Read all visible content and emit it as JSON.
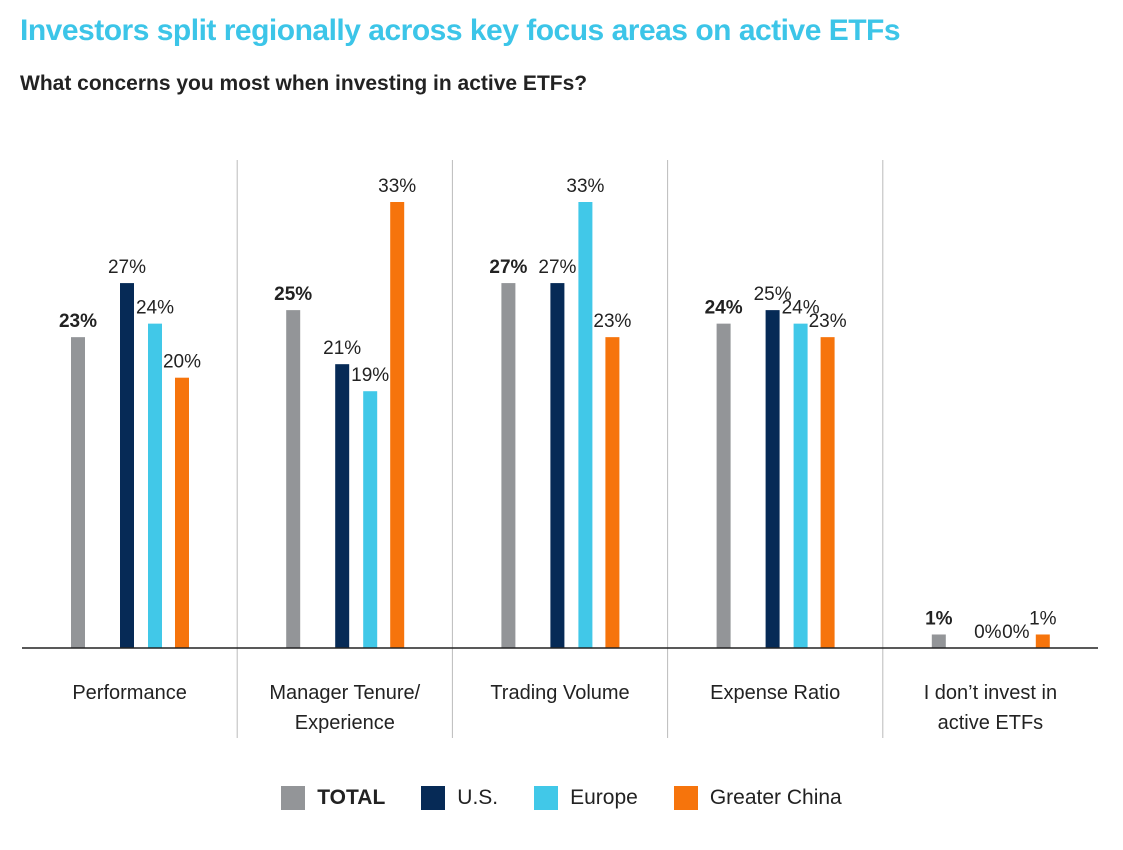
{
  "title": "Investors split regionally across key focus areas on active ETFs",
  "subtitle": "What concerns you most when investing in active ETFs?",
  "colors": {
    "title": "#3cc5e8",
    "total": "#939598",
    "us": "#062a56",
    "europe": "#41c8e8",
    "china": "#f6740c",
    "text": "#222222",
    "axis": "#222222",
    "separator": "#bbbbbb"
  },
  "chart_data": {
    "type": "bar",
    "title": "Investors split regionally across key focus areas on active ETFs",
    "subtitle": "What concerns you most when investing in active ETFs?",
    "categories": [
      [
        "Performance"
      ],
      [
        "Manager Tenure/",
        "Experience"
      ],
      [
        "Trading Volume"
      ],
      [
        "Expense Ratio"
      ],
      [
        "I don’t invest in",
        "active ETFs"
      ]
    ],
    "series": [
      {
        "name": "TOTAL",
        "key": "total",
        "values": [
          23,
          25,
          27,
          24,
          1
        ],
        "labels": [
          "23%",
          "25%",
          "27%",
          "24%",
          "1%"
        ],
        "bold": true
      },
      {
        "name": "U.S.",
        "key": "us",
        "values": [
          27,
          21,
          27,
          25,
          0
        ],
        "labels": [
          "27%",
          "21%",
          "27%",
          "25%",
          "0%"
        ],
        "bold": false
      },
      {
        "name": "Europe",
        "key": "europe",
        "values": [
          24,
          19,
          33,
          24,
          0
        ],
        "labels": [
          "24%",
          "19%",
          "33%",
          "24%",
          "0%"
        ],
        "bold": false
      },
      {
        "name": "Greater China",
        "key": "china",
        "values": [
          20,
          33,
          23,
          23,
          1
        ],
        "labels": [
          "20%",
          "33%",
          "23%",
          "23%",
          "1%"
        ],
        "bold": false
      }
    ],
    "ylim": [
      0,
      33
    ],
    "grid": false,
    "legend_position": "bottom"
  },
  "legend": [
    {
      "label": "TOTAL",
      "key": "total",
      "bold": true
    },
    {
      "label": "U.S.",
      "key": "us",
      "bold": false
    },
    {
      "label": "Europe",
      "key": "europe",
      "bold": false
    },
    {
      "label": "Greater China",
      "key": "china",
      "bold": false
    }
  ]
}
